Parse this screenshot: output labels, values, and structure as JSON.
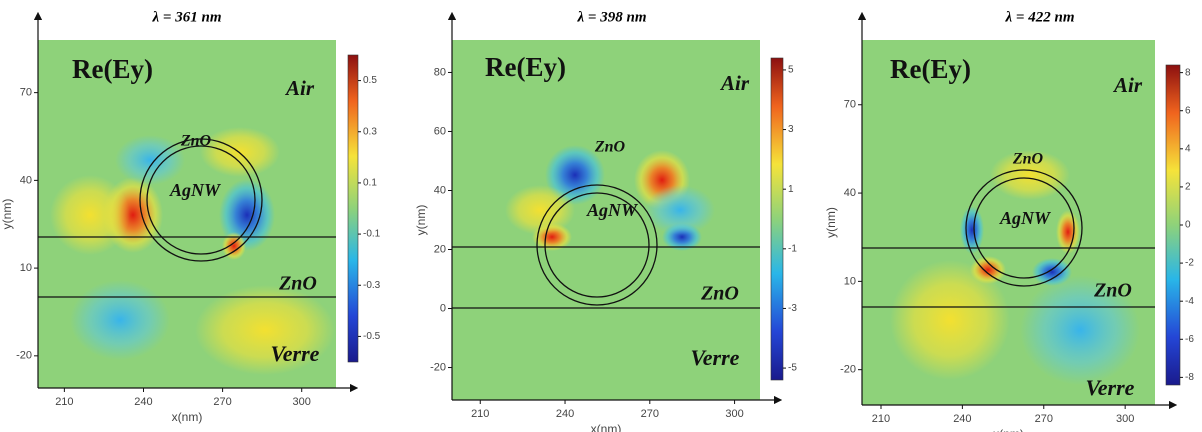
{
  "panels": [
    {
      "title": "λ = 361 nm",
      "field_label": "Re(Ey)",
      "labels": {
        "air": "Air",
        "shell": "ZnO",
        "core": "AgNW",
        "layer": "ZnO",
        "substrate": "Verre"
      },
      "x_label": "x(nm)",
      "y_label": "y(nm)",
      "xlim": [
        200,
        313
      ],
      "xticks": [
        210,
        240,
        270,
        300
      ],
      "ylim": [
        -31,
        88
      ],
      "yticks": [
        70,
        40,
        10,
        -20
      ],
      "colorbar_lim": [
        -0.6,
        0.6
      ],
      "colorbar_ticks": [
        0.5,
        0.3,
        0.1,
        -0.1,
        -0.3,
        -0.5
      ]
    },
    {
      "title": "λ = 398 nm",
      "field_label": "Re(Ey)",
      "labels": {
        "air": "Air",
        "shell": "ZnO",
        "core": "AgNW",
        "layer": "ZnO",
        "substrate": "Verre"
      },
      "x_label": "x(nm)",
      "y_label": "y(nm)",
      "xlim": [
        200,
        309
      ],
      "xticks": [
        210,
        240,
        270,
        300
      ],
      "ylim": [
        -31,
        91
      ],
      "yticks": [
        80,
        60,
        40,
        20,
        0,
        -20
      ],
      "colorbar_lim": [
        -5.4,
        5.4
      ],
      "colorbar_ticks": [
        5,
        3,
        1,
        -1,
        -3,
        -5
      ]
    },
    {
      "title": "λ = 422 nm",
      "field_label": "Re(Ey)",
      "labels": {
        "air": "Air",
        "shell": "ZnO",
        "core": "AgNW",
        "layer": "ZnO",
        "substrate": "Verre"
      },
      "x_label": "x(nm)",
      "y_label": "y(nm)",
      "xlim": [
        203,
        311
      ],
      "xticks": [
        210,
        240,
        270,
        300
      ],
      "ylim": [
        -32,
        92
      ],
      "yticks": [
        70,
        40,
        10,
        -20
      ],
      "colorbar_lim": [
        -8.4,
        8.4
      ],
      "colorbar_ticks": [
        8,
        6,
        4,
        2,
        0,
        -2,
        -4,
        -6,
        -8
      ]
    }
  ]
}
